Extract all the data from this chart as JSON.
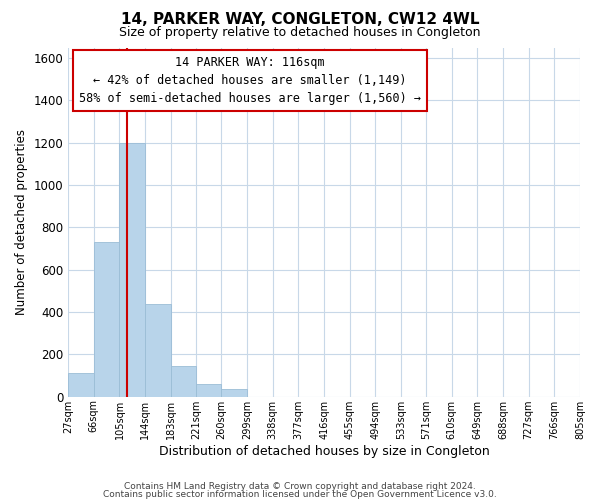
{
  "title": "14, PARKER WAY, CONGLETON, CW12 4WL",
  "subtitle": "Size of property relative to detached houses in Congleton",
  "xlabel": "Distribution of detached houses by size in Congleton",
  "ylabel": "Number of detached properties",
  "bar_edges": [
    27,
    66,
    105,
    144,
    183,
    221,
    260,
    299,
    338,
    377,
    416,
    455,
    494,
    533,
    571,
    610,
    649,
    688,
    727,
    766,
    805
  ],
  "bar_heights": [
    110,
    730,
    1200,
    440,
    145,
    60,
    35,
    0,
    0,
    0,
    0,
    0,
    0,
    0,
    0,
    0,
    0,
    0,
    0,
    0
  ],
  "bar_color": "#b8d4ea",
  "bar_edgecolor": "#9bbdd6",
  "property_line_x": 116,
  "property_line_color": "#cc0000",
  "ylim": [
    0,
    1650
  ],
  "yticks": [
    0,
    200,
    400,
    600,
    800,
    1000,
    1200,
    1400,
    1600
  ],
  "annotation_title": "14 PARKER WAY: 116sqm",
  "annotation_line1": "← 42% of detached houses are smaller (1,149)",
  "annotation_line2": "58% of semi-detached houses are larger (1,560) →",
  "footnote1": "Contains HM Land Registry data © Crown copyright and database right 2024.",
  "footnote2": "Contains public sector information licensed under the Open Government Licence v3.0.",
  "bg_color": "#ffffff",
  "grid_color": "#c8d8e8",
  "tick_labels": [
    "27sqm",
    "66sqm",
    "105sqm",
    "144sqm",
    "183sqm",
    "221sqm",
    "260sqm",
    "299sqm",
    "338sqm",
    "377sqm",
    "416sqm",
    "455sqm",
    "494sqm",
    "533sqm",
    "571sqm",
    "610sqm",
    "649sqm",
    "688sqm",
    "727sqm",
    "766sqm",
    "805sqm"
  ]
}
